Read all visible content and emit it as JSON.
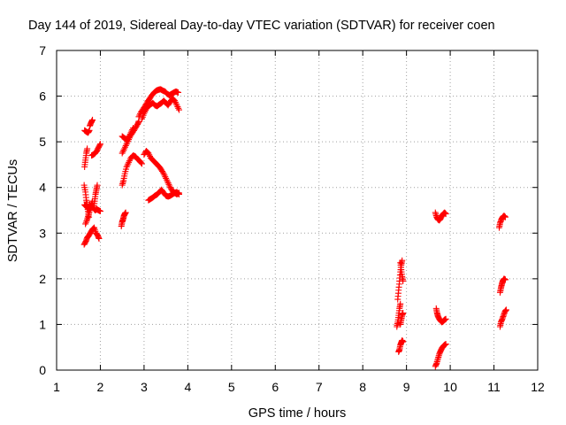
{
  "chart_data": {
    "type": "scatter",
    "title": "Day 144 of 2019, Sidereal Day-to-day VTEC variation (SDTVAR) for receiver coen",
    "xlabel": "GPS time / hours",
    "ylabel": "SDTVAR / TECUs",
    "xlim": [
      1,
      12
    ],
    "ylim": [
      0,
      7
    ],
    "xticks": [
      "1",
      "2",
      "3",
      "4",
      "5",
      "6",
      "7",
      "8",
      "9",
      "10",
      "11",
      "12"
    ],
    "yticks": [
      "0",
      "1",
      "2",
      "3",
      "4",
      "5",
      "6",
      "7"
    ],
    "grid": true,
    "marker": "plus",
    "series": [
      {
        "name": "SDTVAR",
        "color": "#ff0000",
        "segments": [
          [
            [
              1.63,
              4.05
            ],
            [
              1.66,
              3.9
            ],
            [
              1.68,
              3.72
            ],
            [
              1.7,
              3.6
            ],
            [
              1.72,
              3.48
            ],
            [
              1.74,
              3.35
            ]
          ],
          [
            [
              1.64,
              3.62
            ],
            [
              1.68,
              3.58
            ],
            [
              1.72,
              3.55
            ],
            [
              1.76,
              3.62
            ],
            [
              1.8,
              3.58
            ],
            [
              1.84,
              3.55
            ],
            [
              1.88,
              3.5
            ],
            [
              1.92,
              3.52
            ],
            [
              1.96,
              3.5
            ],
            [
              2.0,
              3.48
            ]
          ],
          [
            [
              1.66,
              3.2
            ],
            [
              1.7,
              3.3
            ],
            [
              1.73,
              3.4
            ],
            [
              1.76,
              3.5
            ],
            [
              1.79,
              3.6
            ],
            [
              1.82,
              3.7
            ]
          ],
          [
            [
              1.63,
              2.75
            ],
            [
              1.67,
              2.82
            ],
            [
              1.7,
              2.9
            ],
            [
              1.74,
              2.95
            ],
            [
              1.78,
              3.02
            ],
            [
              1.82,
              3.08
            ],
            [
              1.86,
              3.12
            ],
            [
              1.9,
              3.0
            ],
            [
              1.94,
              2.95
            ],
            [
              1.97,
              2.88
            ]
          ],
          [
            [
              1.85,
              3.55
            ],
            [
              1.87,
              3.7
            ],
            [
              1.89,
              3.85
            ],
            [
              1.91,
              3.95
            ],
            [
              1.93,
              4.05
            ]
          ],
          [
            [
              1.64,
              4.45
            ],
            [
              1.66,
              4.6
            ],
            [
              1.68,
              4.75
            ],
            [
              1.7,
              4.85
            ]
          ],
          [
            [
              1.64,
              5.25
            ],
            [
              1.68,
              5.22
            ],
            [
              1.72,
              5.2
            ],
            [
              1.75,
              5.25
            ]
          ],
          [
            [
              1.76,
              5.35
            ],
            [
              1.79,
              5.42
            ],
            [
              1.82,
              5.48
            ]
          ],
          [
            [
              1.8,
              4.7
            ],
            [
              1.84,
              4.72
            ],
            [
              1.88,
              4.75
            ],
            [
              1.92,
              4.8
            ],
            [
              1.96,
              4.88
            ],
            [
              2.0,
              4.95
            ]
          ],
          [
            [
              2.48,
              3.15
            ],
            [
              2.5,
              3.25
            ],
            [
              2.52,
              3.3
            ],
            [
              2.54,
              3.38
            ],
            [
              2.56,
              3.42
            ],
            [
              2.58,
              3.45
            ]
          ],
          [
            [
              2.5,
              4.05
            ],
            [
              2.53,
              4.15
            ],
            [
              2.56,
              4.3
            ],
            [
              2.6,
              4.45
            ],
            [
              2.65,
              4.55
            ],
            [
              2.7,
              4.65
            ],
            [
              2.75,
              4.7
            ],
            [
              2.8,
              4.68
            ],
            [
              2.85,
              4.62
            ],
            [
              2.9,
              4.58
            ],
            [
              2.95,
              4.52
            ]
          ],
          [
            [
              2.5,
              4.75
            ],
            [
              2.55,
              4.85
            ],
            [
              2.6,
              4.95
            ],
            [
              2.65,
              5.05
            ],
            [
              2.7,
              5.15
            ],
            [
              2.75,
              5.22
            ],
            [
              2.8,
              5.3
            ],
            [
              2.85,
              5.38
            ],
            [
              2.88,
              5.45
            ]
          ],
          [
            [
              2.5,
              5.12
            ],
            [
              2.55,
              5.08
            ],
            [
              2.6,
              5.05
            ],
            [
              2.65,
              5.1
            ],
            [
              2.7,
              5.2
            ],
            [
              2.75,
              5.3
            ]
          ],
          [
            [
              2.88,
              5.55
            ],
            [
              2.93,
              5.65
            ],
            [
              2.98,
              5.72
            ],
            [
              3.03,
              5.8
            ],
            [
              3.08,
              5.88
            ],
            [
              3.13,
              5.95
            ],
            [
              3.18,
              6.02
            ],
            [
              3.23,
              6.08
            ],
            [
              3.28,
              6.12
            ],
            [
              3.33,
              6.14
            ],
            [
              3.38,
              6.15
            ],
            [
              3.43,
              6.12
            ],
            [
              3.48,
              6.1
            ],
            [
              3.53,
              6.05
            ],
            [
              3.58,
              6.02
            ],
            [
              3.63,
              6.05
            ],
            [
              3.68,
              6.08
            ],
            [
              3.73,
              6.1
            ],
            [
              3.78,
              6.08
            ]
          ],
          [
            [
              2.95,
              5.5
            ],
            [
              3.0,
              5.62
            ],
            [
              3.05,
              5.72
            ],
            [
              3.1,
              5.78
            ],
            [
              3.15,
              5.82
            ],
            [
              3.2,
              5.85
            ],
            [
              3.25,
              5.8
            ],
            [
              3.3,
              5.78
            ],
            [
              3.35,
              5.82
            ],
            [
              3.4,
              5.85
            ],
            [
              3.45,
              5.9
            ],
            [
              3.5,
              5.85
            ],
            [
              3.55,
              5.8
            ],
            [
              3.6,
              5.88
            ],
            [
              3.65,
              5.95
            ],
            [
              3.7,
              5.9
            ],
            [
              3.75,
              5.8
            ],
            [
              3.8,
              5.7
            ]
          ],
          [
            [
              3.0,
              4.72
            ],
            [
              3.05,
              4.8
            ],
            [
              3.1,
              4.75
            ],
            [
              3.15,
              4.65
            ],
            [
              3.2,
              4.6
            ],
            [
              3.25,
              4.55
            ],
            [
              3.3,
              4.5
            ],
            [
              3.35,
              4.45
            ],
            [
              3.4,
              4.38
            ],
            [
              3.45,
              4.3
            ],
            [
              3.5,
              4.2
            ],
            [
              3.55,
              4.1
            ],
            [
              3.6,
              4.0
            ],
            [
              3.65,
              3.92
            ],
            [
              3.7,
              3.88
            ],
            [
              3.75,
              3.85
            ],
            [
              3.8,
              3.88
            ]
          ],
          [
            [
              3.1,
              3.72
            ],
            [
              3.15,
              3.75
            ],
            [
              3.2,
              3.78
            ],
            [
              3.25,
              3.82
            ],
            [
              3.3,
              3.85
            ],
            [
              3.35,
              3.9
            ],
            [
              3.4,
              3.95
            ],
            [
              3.45,
              3.88
            ],
            [
              3.5,
              3.82
            ],
            [
              3.55,
              3.8
            ],
            [
              3.6,
              3.82
            ],
            [
              3.65,
              3.85
            ],
            [
              3.7,
              3.88
            ],
            [
              3.75,
              3.9
            ],
            [
              3.8,
              3.85
            ]
          ],
          [
            [
              8.78,
              0.95
            ],
            [
              8.8,
              1.05
            ],
            [
              8.82,
              1.2
            ],
            [
              8.84,
              1.35
            ],
            [
              8.86,
              1.45
            ]
          ],
          [
            [
              8.8,
              1.55
            ],
            [
              8.82,
              1.75
            ],
            [
              8.84,
              1.95
            ],
            [
              8.86,
              2.15
            ],
            [
              8.88,
              2.3
            ],
            [
              8.9,
              2.4
            ]
          ],
          [
            [
              8.86,
              2.35
            ],
            [
              8.88,
              2.2
            ],
            [
              8.9,
              2.05
            ],
            [
              8.92,
              1.95
            ]
          ],
          [
            [
              8.82,
              0.4
            ],
            [
              8.84,
              0.45
            ],
            [
              8.86,
              0.55
            ],
            [
              8.88,
              0.6
            ],
            [
              8.9,
              0.65
            ],
            [
              8.92,
              0.62
            ]
          ],
          [
            [
              8.86,
              1.0
            ],
            [
              8.88,
              1.1
            ],
            [
              8.9,
              1.2
            ],
            [
              8.92,
              1.25
            ]
          ],
          [
            [
              9.66,
              0.08
            ],
            [
              9.69,
              0.15
            ],
            [
              9.72,
              0.25
            ],
            [
              9.75,
              0.35
            ],
            [
              9.78,
              0.42
            ],
            [
              9.81,
              0.48
            ],
            [
              9.84,
              0.52
            ],
            [
              9.87,
              0.55
            ],
            [
              9.9,
              0.57
            ]
          ],
          [
            [
              9.68,
              1.35
            ],
            [
              9.7,
              1.25
            ],
            [
              9.72,
              1.18
            ],
            [
              9.75,
              1.12
            ],
            [
              9.78,
              1.08
            ],
            [
              9.81,
              1.05
            ],
            [
              9.84,
              1.07
            ],
            [
              9.87,
              1.1
            ],
            [
              9.9,
              1.12
            ]
          ],
          [
            [
              9.66,
              3.45
            ],
            [
              9.69,
              3.35
            ],
            [
              9.72,
              3.3
            ],
            [
              9.75,
              3.28
            ],
            [
              9.78,
              3.32
            ],
            [
              9.81,
              3.38
            ],
            [
              9.84,
              3.42
            ],
            [
              9.87,
              3.45
            ],
            [
              9.9,
              3.42
            ]
          ],
          [
            [
              11.12,
              3.12
            ],
            [
              11.14,
              3.22
            ],
            [
              11.17,
              3.3
            ],
            [
              11.2,
              3.35
            ],
            [
              11.23,
              3.38
            ],
            [
              11.26,
              3.35
            ]
          ],
          [
            [
              11.14,
              1.7
            ],
            [
              11.16,
              1.8
            ],
            [
              11.18,
              1.88
            ],
            [
              11.2,
              1.95
            ],
            [
              11.23,
              2.0
            ],
            [
              11.26,
              1.98
            ]
          ],
          [
            [
              11.14,
              0.95
            ],
            [
              11.16,
              1.05
            ],
            [
              11.19,
              1.12
            ],
            [
              11.22,
              1.2
            ],
            [
              11.25,
              1.28
            ],
            [
              11.28,
              1.32
            ]
          ]
        ]
      }
    ]
  }
}
